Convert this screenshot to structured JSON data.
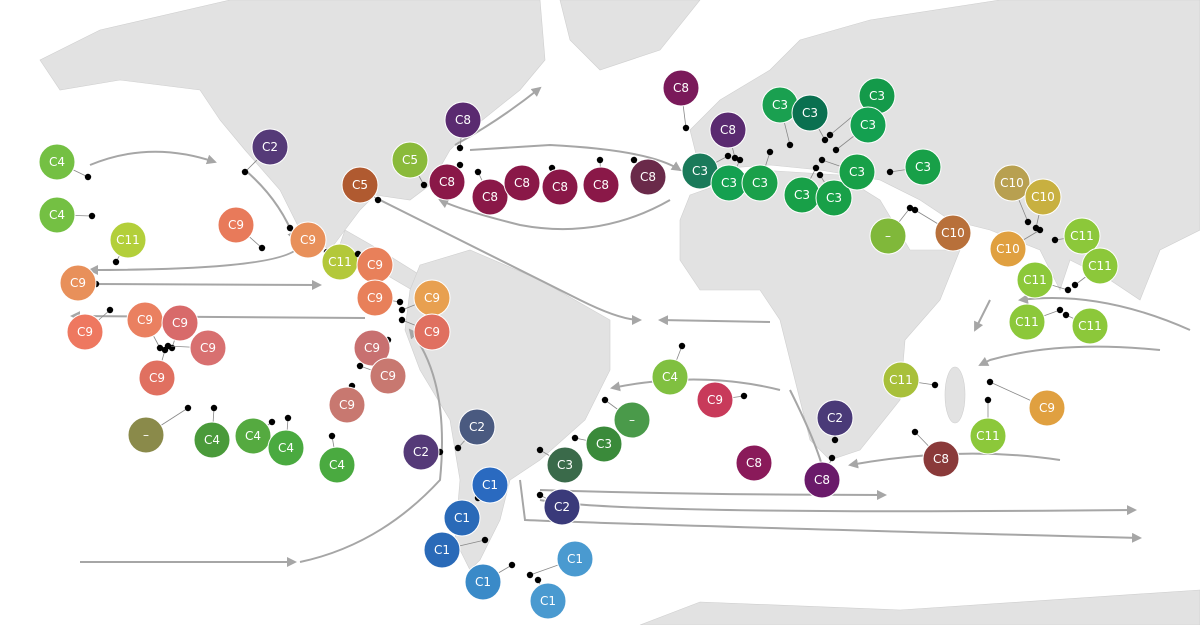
{
  "markers": [
    {
      "label": "C4",
      "color": "#74c043"
    },
    {
      "label": "C4",
      "color": "#74c043"
    },
    {
      "label": "C11",
      "color": "#b3cf3a"
    },
    {
      "label": "C2",
      "color": "#553a78"
    },
    {
      "label": "C9",
      "color": "#e87a5a"
    },
    {
      "label": "C9",
      "color": "#e8905a"
    },
    {
      "label": "C11",
      "color": "#b3c83a"
    },
    {
      "label": "C9",
      "color": "#e8905a"
    },
    {
      "label": "C9",
      "color": "#ee7860"
    },
    {
      "label": "C9",
      "color": "#ea8060"
    },
    {
      "label": "C9",
      "color": "#d86a6a"
    },
    {
      "label": "C9",
      "color": "#d87070"
    },
    {
      "label": "C9",
      "color": "#e07060"
    },
    {
      "label": "C9",
      "color": "#e8805a"
    },
    {
      "label": "C9",
      "color": "#e8805a"
    },
    {
      "label": "C9",
      "color": "#e8a050"
    },
    {
      "label": "C9",
      "color": "#e07060"
    },
    {
      "label": "C9",
      "color": "#c87070"
    },
    {
      "label": "C9",
      "color": "#c87870"
    },
    {
      "label": "C9",
      "color": "#c87870"
    },
    {
      "label": "–",
      "color": "#8a8a4a"
    },
    {
      "label": "C4",
      "color": "#4a9a3a"
    },
    {
      "label": "C4",
      "color": "#55aa40"
    },
    {
      "label": "C4",
      "color": "#4aaa40"
    },
    {
      "label": "C4",
      "color": "#4aaa40"
    },
    {
      "label": "C5",
      "color": "#b05a30"
    },
    {
      "label": "C5",
      "color": "#8aba3a"
    },
    {
      "label": "C8",
      "color": "#5a2a70"
    },
    {
      "label": "C8",
      "color": "#8a1848"
    },
    {
      "label": "C8",
      "color": "#8a1848"
    },
    {
      "label": "C8",
      "color": "#8a1848"
    },
    {
      "label": "C8",
      "color": "#8a1848"
    },
    {
      "label": "C8",
      "color": "#8a1848"
    },
    {
      "label": "C8",
      "color": "#6a2a4a"
    },
    {
      "label": "C8",
      "color": "#7a1a5a"
    },
    {
      "label": "C8",
      "color": "#5a2a70"
    },
    {
      "label": "C3",
      "color": "#1a7a5a"
    },
    {
      "label": "C3",
      "color": "#14a050"
    },
    {
      "label": "C3",
      "color": "#1aa04a"
    },
    {
      "label": "C3",
      "color": "#1aa050"
    },
    {
      "label": "C3",
      "color": "#0a7050"
    },
    {
      "label": "C3",
      "color": "#149a4a"
    },
    {
      "label": "C3",
      "color": "#14a050"
    },
    {
      "label": "C3",
      "color": "#18a048"
    },
    {
      "label": "C3",
      "color": "#18a048"
    },
    {
      "label": "C3",
      "color": "#18a048"
    },
    {
      "label": "C3",
      "color": "#18a048"
    },
    {
      "label": "C10",
      "color": "#b8a050"
    },
    {
      "label": "C10",
      "color": "#c8b040"
    },
    {
      "label": "C10",
      "color": "#b8703a"
    },
    {
      "label": "C10",
      "color": "#e0a040"
    },
    {
      "label": "–",
      "color": "#80b83a"
    },
    {
      "label": "C11",
      "color": "#8cc83a"
    },
    {
      "label": "C11",
      "color": "#8cc83a"
    },
    {
      "label": "C11",
      "color": "#8cc83a"
    },
    {
      "label": "C11",
      "color": "#8cc83a"
    },
    {
      "label": "C11",
      "color": "#8cc83a"
    },
    {
      "label": "C11",
      "color": "#a8c03a"
    },
    {
      "label": "C11",
      "color": "#8cc83a"
    },
    {
      "label": "C9",
      "color": "#e0a040"
    },
    {
      "label": "C8",
      "color": "#8a3a3a"
    },
    {
      "label": "C2",
      "color": "#4a3a78"
    },
    {
      "label": "C8",
      "color": "#6a1a6a"
    },
    {
      "label": "C8",
      "color": "#8a1a5a"
    },
    {
      "label": "C9",
      "color": "#c83a5a"
    },
    {
      "label": "C4",
      "color": "#80c040"
    },
    {
      "label": "–",
      "color": "#4a9a4a"
    },
    {
      "label": "C3",
      "color": "#3a8a3a"
    },
    {
      "label": "C3",
      "color": "#3a6a4a"
    },
    {
      "label": "C2",
      "color": "#3a3a7a"
    },
    {
      "label": "C2",
      "color": "#4a5a80"
    },
    {
      "label": "C2",
      "color": "#553a78"
    },
    {
      "label": "C1",
      "color": "#2a6ac0"
    },
    {
      "label": "C1",
      "color": "#2a6ab8"
    },
    {
      "label": "C1",
      "color": "#2a6ab8"
    },
    {
      "label": "C1",
      "color": "#4a9ad0"
    },
    {
      "label": "C1",
      "color": "#3a8ac8"
    },
    {
      "label": "C1",
      "color": "#4a9ad0"
    }
  ]
}
